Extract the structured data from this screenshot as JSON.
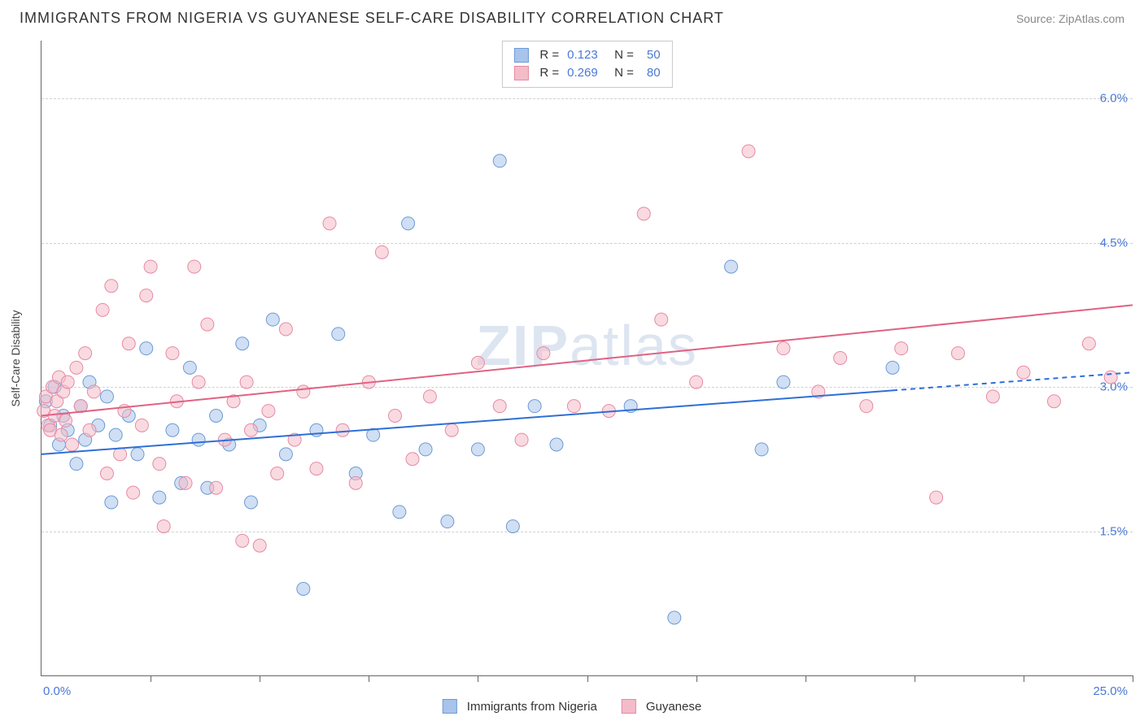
{
  "header": {
    "title": "IMMIGRANTS FROM NIGERIA VS GUYANESE SELF-CARE DISABILITY CORRELATION CHART",
    "source_prefix": "Source: ",
    "source_name": "ZipAtlas.com"
  },
  "chart": {
    "type": "scatter",
    "x_axis": {
      "min": 0,
      "max": 25,
      "origin_label": "0.0%",
      "max_label": "25.0%",
      "tick_positions": [
        2.5,
        5,
        7.5,
        10,
        12.5,
        15,
        17.5,
        20,
        22.5,
        25
      ]
    },
    "y_axis": {
      "min": 0,
      "max": 6.6,
      "title": "Self-Care Disability",
      "gridlines": [
        1.5,
        3.0,
        4.5,
        6.0
      ],
      "tick_labels": [
        "1.5%",
        "3.0%",
        "4.5%",
        "6.0%"
      ]
    },
    "background_color": "#ffffff",
    "grid_color": "#d0d0d0",
    "marker_radius": 8,
    "marker_opacity": 0.55,
    "watermark": "ZIPatlas"
  },
  "series": [
    {
      "id": "nigeria",
      "label": "Immigrants from Nigeria",
      "color_fill": "#a9c4ea",
      "color_stroke": "#6b9bd8",
      "r_value": "0.123",
      "n_value": "50",
      "trend": {
        "y_at_x0": 2.3,
        "y_at_xmax": 3.15,
        "color": "#2e6fd6",
        "width": 2,
        "solid_until_x": 19.5
      },
      "points": [
        [
          0.1,
          2.85
        ],
        [
          0.2,
          2.6
        ],
        [
          0.3,
          3.0
        ],
        [
          0.4,
          2.4
        ],
        [
          0.5,
          2.7
        ],
        [
          0.6,
          2.55
        ],
        [
          0.8,
          2.2
        ],
        [
          0.9,
          2.8
        ],
        [
          1.0,
          2.45
        ],
        [
          1.1,
          3.05
        ],
        [
          1.3,
          2.6
        ],
        [
          1.5,
          2.9
        ],
        [
          1.6,
          1.8
        ],
        [
          1.7,
          2.5
        ],
        [
          2.0,
          2.7
        ],
        [
          2.2,
          2.3
        ],
        [
          2.4,
          3.4
        ],
        [
          2.7,
          1.85
        ],
        [
          3.0,
          2.55
        ],
        [
          3.2,
          2.0
        ],
        [
          3.4,
          3.2
        ],
        [
          3.6,
          2.45
        ],
        [
          3.8,
          1.95
        ],
        [
          4.0,
          2.7
        ],
        [
          4.3,
          2.4
        ],
        [
          4.6,
          3.45
        ],
        [
          4.8,
          1.8
        ],
        [
          5.0,
          2.6
        ],
        [
          5.3,
          3.7
        ],
        [
          5.6,
          2.3
        ],
        [
          6.0,
          0.9
        ],
        [
          6.3,
          2.55
        ],
        [
          6.8,
          3.55
        ],
        [
          7.2,
          2.1
        ],
        [
          7.6,
          2.5
        ],
        [
          8.2,
          1.7
        ],
        [
          8.4,
          4.7
        ],
        [
          8.8,
          2.35
        ],
        [
          9.3,
          1.6
        ],
        [
          10.0,
          2.35
        ],
        [
          10.5,
          5.35
        ],
        [
          10.8,
          1.55
        ],
        [
          11.3,
          2.8
        ],
        [
          11.8,
          2.4
        ],
        [
          13.5,
          2.8
        ],
        [
          14.5,
          0.6
        ],
        [
          15.8,
          4.25
        ],
        [
          16.5,
          2.35
        ],
        [
          17.0,
          3.05
        ],
        [
          19.5,
          3.2
        ]
      ]
    },
    {
      "id": "guyanese",
      "label": "Guyanese",
      "color_fill": "#f4bcc9",
      "color_stroke": "#e78aa3",
      "r_value": "0.269",
      "n_value": "80",
      "trend": {
        "y_at_x0": 2.7,
        "y_at_xmax": 3.85,
        "color": "#e06284",
        "width": 2,
        "solid_until_x": 25
      },
      "points": [
        [
          0.05,
          2.75
        ],
        [
          0.1,
          2.9
        ],
        [
          0.15,
          2.6
        ],
        [
          0.2,
          2.55
        ],
        [
          0.25,
          3.0
        ],
        [
          0.3,
          2.7
        ],
        [
          0.35,
          2.85
        ],
        [
          0.4,
          3.1
        ],
        [
          0.45,
          2.5
        ],
        [
          0.5,
          2.95
        ],
        [
          0.55,
          2.65
        ],
        [
          0.6,
          3.05
        ],
        [
          0.7,
          2.4
        ],
        [
          0.8,
          3.2
        ],
        [
          0.9,
          2.8
        ],
        [
          1.0,
          3.35
        ],
        [
          1.1,
          2.55
        ],
        [
          1.2,
          2.95
        ],
        [
          1.4,
          3.8
        ],
        [
          1.5,
          2.1
        ],
        [
          1.6,
          4.05
        ],
        [
          1.8,
          2.3
        ],
        [
          1.9,
          2.75
        ],
        [
          2.0,
          3.45
        ],
        [
          2.1,
          1.9
        ],
        [
          2.3,
          2.6
        ],
        [
          2.4,
          3.95
        ],
        [
          2.5,
          4.25
        ],
        [
          2.7,
          2.2
        ],
        [
          2.8,
          1.55
        ],
        [
          3.0,
          3.35
        ],
        [
          3.1,
          2.85
        ],
        [
          3.3,
          2.0
        ],
        [
          3.5,
          4.25
        ],
        [
          3.6,
          3.05
        ],
        [
          3.8,
          3.65
        ],
        [
          4.0,
          1.95
        ],
        [
          4.2,
          2.45
        ],
        [
          4.4,
          2.85
        ],
        [
          4.6,
          1.4
        ],
        [
          4.7,
          3.05
        ],
        [
          4.8,
          2.55
        ],
        [
          5.0,
          1.35
        ],
        [
          5.2,
          2.75
        ],
        [
          5.4,
          2.1
        ],
        [
          5.6,
          3.6
        ],
        [
          5.8,
          2.45
        ],
        [
          6.0,
          2.95
        ],
        [
          6.3,
          2.15
        ],
        [
          6.6,
          4.7
        ],
        [
          6.9,
          2.55
        ],
        [
          7.2,
          2.0
        ],
        [
          7.5,
          3.05
        ],
        [
          7.8,
          4.4
        ],
        [
          8.1,
          2.7
        ],
        [
          8.5,
          2.25
        ],
        [
          8.9,
          2.9
        ],
        [
          9.4,
          2.55
        ],
        [
          10.0,
          3.25
        ],
        [
          10.5,
          2.8
        ],
        [
          11.0,
          2.45
        ],
        [
          11.5,
          3.35
        ],
        [
          12.2,
          2.8
        ],
        [
          13.0,
          2.75
        ],
        [
          13.8,
          4.8
        ],
        [
          14.2,
          3.7
        ],
        [
          15.0,
          3.05
        ],
        [
          16.2,
          5.45
        ],
        [
          17.0,
          3.4
        ],
        [
          17.8,
          2.95
        ],
        [
          18.3,
          3.3
        ],
        [
          18.9,
          2.8
        ],
        [
          19.7,
          3.4
        ],
        [
          20.5,
          1.85
        ],
        [
          21.0,
          3.35
        ],
        [
          21.8,
          2.9
        ],
        [
          22.5,
          3.15
        ],
        [
          23.2,
          2.85
        ],
        [
          24.0,
          3.45
        ],
        [
          24.5,
          3.1
        ]
      ]
    }
  ],
  "legend_top": {
    "r_label": "R  =",
    "n_label": "N  ="
  },
  "legend_bottom_labels": {
    "a": "Immigrants from Nigeria",
    "b": "Guyanese"
  }
}
